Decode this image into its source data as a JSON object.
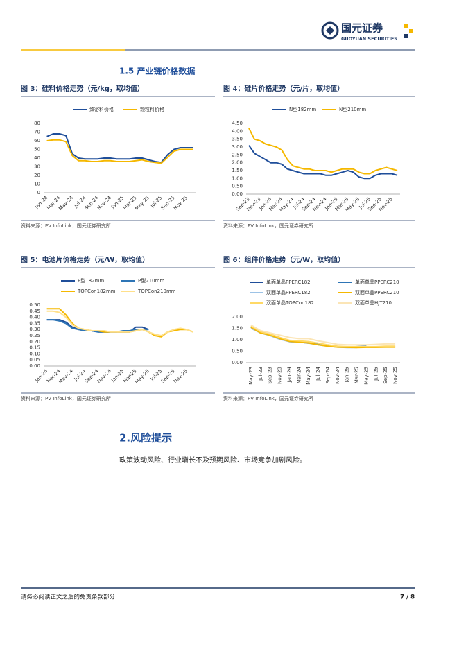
{
  "header": {
    "company": "国元证券",
    "company_en": "GUOYUAN SECURITIES"
  },
  "sections": [
    {
      "title": "1.5 产业链价格数据"
    },
    {
      "title": "2.风险提示",
      "body": "政策波动风险、行业增长不及预期风险、市场竞争加剧风险。"
    }
  ],
  "chart_data": [
    {
      "type": "line",
      "title": "图 3：硅料价格走势（元/kg，取均值）",
      "source": "资料来源：PV InfoLink，国元证券研究所",
      "categories": [
        "Jan-24",
        null,
        "Mar-24",
        null,
        "May-24",
        null,
        "Jul-24",
        null,
        "Sep-24",
        null,
        "Nov-24",
        null,
        "Jan-25",
        null,
        "Mar-25",
        null,
        "May-25",
        null,
        "Jul-25",
        null,
        "Sep-25",
        null,
        "Nov-25",
        null
      ],
      "ylim": [
        0,
        80
      ],
      "yticks": [
        0,
        10,
        20,
        30,
        40,
        50,
        60,
        70,
        80
      ],
      "grid": false,
      "series": [
        {
          "name": "致密料价格",
          "color": "#1f4e9a",
          "values": [
            65,
            68,
            68,
            66,
            45,
            40,
            39,
            39,
            39,
            40,
            40,
            39,
            39,
            39,
            40,
            40,
            38,
            36,
            35,
            44,
            50,
            52,
            52,
            52
          ]
        },
        {
          "name": "颗粒料价格",
          "color": "#f5b800",
          "values": [
            60,
            61,
            61,
            59,
            43,
            37,
            37,
            36,
            36,
            37,
            37,
            36,
            36,
            36,
            37,
            38,
            36,
            35,
            34,
            41,
            48,
            50,
            50,
            50
          ]
        }
      ]
    },
    {
      "type": "line",
      "title": "图 4：硅片价格走势（元/片，取均值）",
      "source": "资料来源：PV InfoLink，国元证券研究所",
      "categories": [
        "Sep-23",
        null,
        "Nov-23",
        null,
        "Jan-24",
        null,
        "Mar-24",
        null,
        "May-24",
        null,
        "Jul-24",
        null,
        "Sep-24",
        null,
        "Nov-24",
        null,
        "Jan-25",
        null,
        "Mar-25",
        null,
        "May-25",
        null,
        "Jul-25",
        null,
        "Sep-25",
        null,
        "Nov-25",
        null
      ],
      "ylim": [
        0,
        4.5
      ],
      "yticks": [
        {
          "value": 0,
          "label": "0.00"
        },
        {
          "value": 0.5,
          "label": "0.50"
        },
        {
          "value": 1,
          "label": "1.00"
        },
        {
          "value": 1.5,
          "label": "1.50"
        },
        {
          "value": 2,
          "label": "2.00"
        },
        {
          "value": 2.5,
          "label": "2.50"
        },
        {
          "value": 3,
          "label": "3.00"
        },
        {
          "value": 3.5,
          "label": "3.50"
        },
        {
          "value": 4,
          "label": "4.00"
        },
        {
          "value": 4.5,
          "label": "4.50"
        }
      ],
      "grid": false,
      "series": [
        {
          "name": "N型182mm",
          "color": "#1f4e9a",
          "values": [
            3.1,
            2.6,
            2.4,
            2.2,
            2.0,
            2.0,
            1.9,
            1.6,
            1.5,
            1.4,
            1.3,
            1.3,
            1.3,
            1.3,
            1.2,
            1.2,
            1.3,
            1.4,
            1.5,
            1.4,
            1.1,
            1.0,
            1.0,
            1.2,
            1.3,
            1.3,
            1.3,
            1.2
          ]
        },
        {
          "name": "N型210mm",
          "color": "#f5b800",
          "values": [
            4.2,
            3.5,
            3.4,
            3.2,
            3.1,
            3.0,
            2.8,
            2.2,
            1.8,
            1.7,
            1.6,
            1.6,
            1.5,
            1.5,
            1.5,
            1.4,
            1.5,
            1.6,
            1.6,
            1.6,
            1.4,
            1.3,
            1.3,
            1.5,
            1.6,
            1.7,
            1.6,
            1.5
          ]
        }
      ]
    },
    {
      "type": "line",
      "title": "图 5：电池片价格走势（元/W，取均值）",
      "source": "资料来源：PV InfoLink，国元证券研究所",
      "categories": [
        "Jan-24",
        null,
        "Mar-24",
        null,
        "May-24",
        null,
        "Jul-24",
        null,
        "Sep-24",
        null,
        "Nov-24",
        null,
        "Jan-25",
        null,
        "Mar-25",
        null,
        "May-25",
        null,
        "Jul-25",
        null,
        "Sep-25",
        null,
        "Nov-25",
        null
      ],
      "ylim": [
        0,
        0.5
      ],
      "yticks": [
        {
          "value": 0,
          "label": "0.00"
        },
        {
          "value": 0.05,
          "label": "0.05"
        },
        {
          "value": 0.1,
          "label": "0.10"
        },
        {
          "value": 0.15,
          "label": "0.15"
        },
        {
          "value": 0.2,
          "label": "0.20"
        },
        {
          "value": 0.25,
          "label": "0.25"
        },
        {
          "value": 0.3,
          "label": "0.30"
        },
        {
          "value": 0.35,
          "label": "0.35"
        },
        {
          "value": 0.4,
          "label": "0.40"
        },
        {
          "value": 0.45,
          "label": "0.45"
        },
        {
          "value": 0.5,
          "label": "0.50"
        }
      ],
      "grid": false,
      "series": [
        {
          "name": "P型182mm",
          "color": "#1f4e9a",
          "values": [
            0.38,
            0.38,
            0.38,
            0.36,
            0.32,
            0.3,
            0.29,
            0.29,
            0.28,
            0.28,
            0.28,
            0.28,
            0.28,
            0.28,
            0.32,
            0.32,
            0.3,
            null,
            null,
            null,
            null,
            null,
            null,
            null
          ]
        },
        {
          "name": "P型210mm",
          "color": "#2e75b6",
          "values": [
            0.38,
            0.38,
            0.37,
            0.35,
            0.31,
            0.3,
            0.29,
            0.29,
            0.28,
            0.28,
            0.28,
            0.28,
            0.29,
            0.29,
            0.3,
            0.3,
            0.3,
            null,
            null,
            null,
            null,
            null,
            null,
            null
          ]
        },
        {
          "name": "TOPCon182mm",
          "color": "#f5b800",
          "values": [
            0.47,
            0.47,
            0.47,
            0.42,
            0.35,
            0.31,
            0.3,
            0.29,
            0.29,
            0.28,
            0.28,
            0.28,
            0.28,
            0.28,
            0.29,
            0.3,
            0.28,
            0.25,
            0.24,
            0.28,
            0.29,
            0.3,
            0.3,
            0.28
          ]
        },
        {
          "name": "TOPCon210mm",
          "color": "#ffe08a",
          "values": [
            0.45,
            0.45,
            0.44,
            0.4,
            0.34,
            0.31,
            0.3,
            0.29,
            0.29,
            0.29,
            0.28,
            0.28,
            0.28,
            0.28,
            0.29,
            0.3,
            0.28,
            0.26,
            0.25,
            0.28,
            0.3,
            0.31,
            0.3,
            0.28
          ]
        }
      ]
    },
    {
      "type": "line",
      "title": "图 6：组件价格走势（元/W，取均值）",
      "source": "资料来源：PV InfoLink，国元证券研究所",
      "categories": [
        "May-23",
        "Jul-23",
        "Sep-23",
        "Nov-23",
        "Jan-24",
        "Mar-24",
        "May-24",
        "Jul-24",
        "Sep-24",
        "Nov-24",
        "Jan-25",
        "Mar-25",
        "May-25",
        "Jul-25",
        "Sep-25",
        "Nov-25"
      ],
      "ylim": [
        0,
        2
      ],
      "yticks": [
        {
          "value": 0,
          "label": "0.00"
        },
        {
          "value": 0.5,
          "label": "0.50"
        },
        {
          "value": 1,
          "label": "1.00"
        },
        {
          "value": 1.5,
          "label": "1.50"
        },
        {
          "value": 2,
          "label": "2.00"
        }
      ],
      "grid": false,
      "series": [
        {
          "name": "单面单晶PPERC182",
          "color": "#1f4e9a",
          "values": [
            1.55,
            1.3,
            1.2,
            1.05,
            0.92,
            0.9,
            0.85,
            null,
            null,
            null,
            null,
            null,
            null,
            null,
            null,
            null
          ]
        },
        {
          "name": "单面单晶PPERC210",
          "color": "#2e75b6",
          "values": [
            1.55,
            1.32,
            1.22,
            1.08,
            0.95,
            0.92,
            0.88,
            0.8,
            0.75,
            0.7,
            0.68,
            0.7,
            0.72,
            null,
            null,
            null
          ]
        },
        {
          "name": "双面单晶PPERC182",
          "color": "#9dc3e6",
          "values": [
            1.5,
            1.3,
            1.18,
            1.02,
            0.92,
            0.9,
            0.85,
            0.78,
            0.72,
            0.68,
            0.66,
            0.66,
            null,
            null,
            null,
            null
          ]
        },
        {
          "name": "双面单晶PPERC210",
          "color": "#f5b800",
          "values": [
            1.55,
            1.3,
            1.2,
            1.05,
            0.93,
            0.9,
            0.86,
            0.78,
            0.72,
            0.68,
            0.67,
            0.66,
            0.67,
            0.67,
            0.68,
            0.68
          ]
        },
        {
          "name": "双面单晶TOPCon182",
          "color": "#ffd966",
          "values": [
            1.6,
            1.35,
            1.25,
            1.1,
            0.98,
            0.95,
            0.92,
            0.85,
            0.78,
            0.72,
            0.7,
            0.7,
            0.7,
            0.7,
            0.72,
            0.72
          ]
        },
        {
          "name": "双面单晶HJT210",
          "color": "#fbe5b6",
          "values": [
            1.65,
            1.4,
            1.3,
            1.2,
            1.1,
            1.05,
            1.05,
            0.95,
            0.88,
            0.8,
            0.78,
            0.78,
            0.78,
            0.8,
            0.82,
            0.82
          ]
        }
      ]
    }
  ],
  "footer": {
    "disclaimer": "请务必阅读正文之后的免责条款部分",
    "page": "7 / 8"
  }
}
